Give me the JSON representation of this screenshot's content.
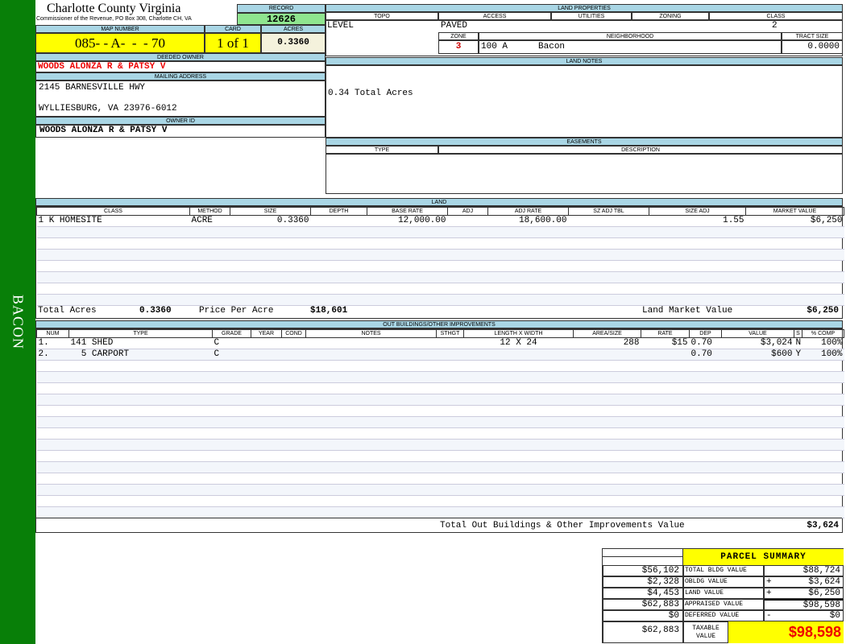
{
  "sidebar": {
    "label": "BACON",
    "color": "#087f08"
  },
  "header": {
    "county": "Charlotte County Virginia",
    "office": "Commissioner of the Revenue, PO Box 308, Charlotte CH, VA"
  },
  "record": {
    "label": "RECORD",
    "value": "12626"
  },
  "map": {
    "map_label": "MAP NUMBER",
    "map_value": "085- - A-  -  - 70",
    "card_label": "CARD",
    "card_value": "1 of 1",
    "acres_label": "ACRES",
    "acres_value": "0.3360"
  },
  "owner": {
    "deeded_label": "DEEDED OWNER",
    "deeded_value": "WOODS ALONZA R & PATSY V",
    "mailing_label": "MAILING ADDRESS",
    "address1": "2145 BARNESVILLE HWY",
    "address2": "WYLLIESBURG, VA 23976-6012",
    "owner_id_label": "OWNER ID",
    "owner_id_value": "WOODS ALONZA R & PATSY V"
  },
  "land_properties": {
    "title": "LAND PROPERTIES",
    "topo_label": "TOPO",
    "access_label": "ACCESS",
    "utilities_label": "UTILITIES",
    "zoning_label": "ZONING",
    "class_label": "CLASS",
    "topo": "LEVEL",
    "access": "PAVED",
    "utilities": "",
    "zoning": "",
    "class": "2",
    "zone_label": "ZONE",
    "neighborhood_label": "NEIGHBORHOOD",
    "tract_label": "TRACT SIZE",
    "zone": "3",
    "neighborhood_code": "100 A",
    "neighborhood": "Bacon",
    "tract_size": "0.0000"
  },
  "land_notes": {
    "title": "LAND NOTES",
    "text": "0.34 Total Acres"
  },
  "easements": {
    "title": "EASEMENTS",
    "type_label": "TYPE",
    "description_label": "DESCRIPTION"
  },
  "land": {
    "title": "LAND",
    "columns": [
      "CLASS",
      "METHOD",
      "SIZE",
      "DEPTH",
      "BASE RATE",
      "ADJ",
      "ADJ RATE",
      "SZ ADJ TBL",
      "Size Adj",
      "MARKET VALUE"
    ],
    "rows": [
      [
        "1 K HOMESITE",
        "ACRE",
        "0.3360",
        "",
        "12,000.00",
        "",
        "18,600.00",
        "",
        "1.55",
        "$6,250"
      ]
    ],
    "total_acres_label": "Total Acres",
    "total_acres": "0.3360",
    "price_label": "Price Per Acre",
    "price": "$18,601",
    "market_label": "Land Market Value",
    "market": "$6,250"
  },
  "outbuildings": {
    "title": "OUT BUILDINGS/OTHER IMPROVEMENTS",
    "columns": [
      "NUM",
      "TYPE",
      "GRADE",
      "YEAR",
      "COND",
      "NOTES",
      "STHGT",
      "LENGTH X WIDTH",
      "AREA/SIZE",
      "RATE",
      "DEP",
      "VALUE",
      "S",
      "% COMP"
    ],
    "rows": [
      [
        "1.",
        "141 SHED",
        "C",
        "",
        "",
        "",
        "",
        "12 X 24",
        "288",
        "$15",
        "0.70",
        "$3,024",
        "N",
        "100%"
      ],
      [
        "2.",
        "  5 CARPORT",
        "C",
        "",
        "",
        "",
        "",
        "",
        "",
        "",
        "0.70",
        "$600",
        "Y",
        "100%"
      ]
    ],
    "total_label": "Total Out Buildings & Other Improvements Value",
    "total": "$3,624"
  },
  "summary": {
    "title": "PARCEL SUMMARY",
    "rows": [
      {
        "prior": "$56,102",
        "label": "TOTAL BLDG VALUE",
        "op": "",
        "value": "$88,724"
      },
      {
        "prior": "$2,328",
        "label": "OBLDG VALUE",
        "op": "+",
        "value": "$3,624"
      },
      {
        "prior": "$4,453",
        "label": "LAND VALUE",
        "op": "+",
        "value": "$6,250"
      },
      {
        "prior": "$62,883",
        "label": "APPRAISED VALUE",
        "op": "",
        "value": "$98,598"
      },
      {
        "prior": "$0",
        "label": "DEFERRED VALUE",
        "op": "-",
        "value": "$0"
      }
    ],
    "taxable_prior": "$62,883",
    "taxable_label": "TAXABLE VALUE",
    "taxable_value": "$98,598"
  }
}
